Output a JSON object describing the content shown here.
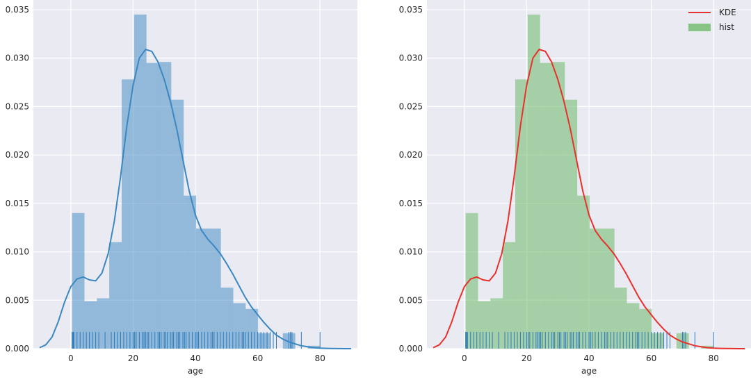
{
  "chart_data": [
    {
      "type": "histogram",
      "xlabel": "age",
      "ylabel": "",
      "xlim": [
        -12,
        92
      ],
      "ylim": [
        0,
        0.036
      ],
      "xticks": [
        0,
        20,
        40,
        60,
        80
      ],
      "yticks": [
        0.0,
        0.005,
        0.01,
        0.015,
        0.02,
        0.025,
        0.03,
        0.035
      ],
      "grid": true,
      "legend": null,
      "colors": {
        "hist": "#3a87c2",
        "kde": "#3a87c2",
        "rug": "#2b7bbd",
        "background": "#eaeaf2"
      },
      "hist": {
        "bin_edges": [
          0.42,
          4.4,
          8.38,
          12.36,
          16.34,
          20.32,
          24.3,
          28.28,
          32.26,
          36.24,
          40.22,
          44.2,
          48.18,
          52.16,
          56.14,
          60.12,
          64.1,
          68.08,
          72.06,
          76.04,
          80.02
        ],
        "density": [
          0.014,
          0.0049,
          0.0052,
          0.011,
          0.0278,
          0.0345,
          0.0295,
          0.0296,
          0.0257,
          0.0158,
          0.0124,
          0.0124,
          0.0063,
          0.0047,
          0.0041,
          0.0016,
          0.0,
          0.0016,
          0.0,
          0.0003
        ]
      },
      "kde": {
        "x": [
          -10,
          -8,
          -6,
          -4,
          -2,
          0,
          2,
          4,
          6,
          8,
          10,
          12,
          14,
          16,
          18,
          20,
          22,
          24,
          26,
          28,
          30,
          32,
          34,
          36,
          38,
          40,
          42,
          44,
          46,
          48,
          50,
          52,
          54,
          56,
          58,
          60,
          62,
          64,
          66,
          68,
          70,
          72,
          74,
          76,
          78,
          80,
          82,
          84,
          86,
          88,
          90
        ],
        "y": [
          0.0001,
          0.0004,
          0.0012,
          0.0028,
          0.0048,
          0.0064,
          0.0072,
          0.0074,
          0.0071,
          0.007,
          0.0078,
          0.0098,
          0.0132,
          0.0178,
          0.023,
          0.0272,
          0.03,
          0.0309,
          0.0307,
          0.0296,
          0.0278,
          0.0255,
          0.0227,
          0.0195,
          0.0163,
          0.0138,
          0.0122,
          0.0113,
          0.0106,
          0.0098,
          0.0088,
          0.0077,
          0.0065,
          0.0053,
          0.0043,
          0.0035,
          0.0027,
          0.002,
          0.0014,
          0.001,
          0.0007,
          0.0005,
          0.0003,
          0.0002,
          0.0001,
          5e-05,
          3e-05,
          2e-05,
          1e-05,
          0.0,
          0.0
        ]
      },
      "rug": [
        0.42,
        0.67,
        0.83,
        0.92,
        1,
        2,
        3,
        4,
        5,
        6,
        7,
        8,
        9,
        11,
        13,
        14,
        15,
        16,
        17,
        18,
        19,
        20,
        20.5,
        21,
        22,
        23,
        23.5,
        24,
        24.5,
        25,
        26,
        27,
        28,
        28.5,
        29,
        30,
        30.5,
        31,
        32,
        32.5,
        33,
        34,
        34.5,
        35,
        36,
        36.5,
        37,
        38,
        39,
        40,
        40.5,
        41,
        42,
        43,
        44,
        45,
        45.5,
        46,
        47,
        48,
        49,
        50,
        51,
        52,
        53,
        54,
        55,
        55.5,
        56,
        57,
        58,
        59,
        60,
        61,
        62,
        63,
        64,
        65,
        66,
        70,
        70.5,
        71,
        74,
        80
      ]
    },
    {
      "type": "histogram",
      "xlabel": "age",
      "ylabel": "",
      "xlim": [
        -12,
        92
      ],
      "ylim": [
        0,
        0.036
      ],
      "xticks": [
        0,
        20,
        40,
        60,
        80
      ],
      "yticks": [
        0.0,
        0.005,
        0.01,
        0.015,
        0.02,
        0.025,
        0.03,
        0.035
      ],
      "grid": true,
      "legend": {
        "placement": "top-right",
        "entries": [
          {
            "label": "KDE",
            "kind": "line",
            "color": "#e8302c"
          },
          {
            "label": "hist",
            "kind": "patch",
            "color": "#5fb35a"
          }
        ]
      },
      "colors": {
        "hist": "#5fb35a",
        "kde": "#e8302c",
        "rug": "#2b7bbd",
        "background": "#eaeaf2"
      },
      "hist": {
        "bin_edges": [
          0.42,
          4.4,
          8.38,
          12.36,
          16.34,
          20.32,
          24.3,
          28.28,
          32.26,
          36.24,
          40.22,
          44.2,
          48.18,
          52.16,
          56.14,
          60.12,
          64.1,
          68.08,
          72.06,
          76.04,
          80.02
        ],
        "density": [
          0.014,
          0.0049,
          0.0052,
          0.011,
          0.0278,
          0.0345,
          0.0295,
          0.0296,
          0.0257,
          0.0158,
          0.0124,
          0.0124,
          0.0063,
          0.0047,
          0.0041,
          0.0016,
          0.0,
          0.0016,
          0.0,
          0.0003
        ]
      },
      "kde": {
        "x": [
          -10,
          -8,
          -6,
          -4,
          -2,
          0,
          2,
          4,
          6,
          8,
          10,
          12,
          14,
          16,
          18,
          20,
          22,
          24,
          26,
          28,
          30,
          32,
          34,
          36,
          38,
          40,
          42,
          44,
          46,
          48,
          50,
          52,
          54,
          56,
          58,
          60,
          62,
          64,
          66,
          68,
          70,
          72,
          74,
          76,
          78,
          80,
          82,
          84,
          86,
          88,
          90
        ],
        "y": [
          0.0001,
          0.0004,
          0.0012,
          0.0028,
          0.0048,
          0.0064,
          0.0072,
          0.0074,
          0.0071,
          0.007,
          0.0078,
          0.0098,
          0.0132,
          0.0178,
          0.023,
          0.0272,
          0.03,
          0.0309,
          0.0307,
          0.0296,
          0.0278,
          0.0255,
          0.0227,
          0.0195,
          0.0163,
          0.0138,
          0.0122,
          0.0113,
          0.0106,
          0.0098,
          0.0088,
          0.0077,
          0.0065,
          0.0053,
          0.0043,
          0.0035,
          0.0027,
          0.002,
          0.0014,
          0.001,
          0.0007,
          0.0005,
          0.0003,
          0.0002,
          0.0001,
          5e-05,
          3e-05,
          2e-05,
          1e-05,
          0.0,
          0.0
        ]
      },
      "rug": [
        0.42,
        0.67,
        0.83,
        0.92,
        1,
        2,
        3,
        4,
        5,
        6,
        7,
        8,
        9,
        11,
        13,
        14,
        15,
        16,
        17,
        18,
        19,
        20,
        20.5,
        21,
        22,
        23,
        23.5,
        24,
        24.5,
        25,
        26,
        27,
        28,
        28.5,
        29,
        30,
        30.5,
        31,
        32,
        32.5,
        33,
        34,
        34.5,
        35,
        36,
        36.5,
        37,
        38,
        39,
        40,
        40.5,
        41,
        42,
        43,
        44,
        45,
        45.5,
        46,
        47,
        48,
        49,
        50,
        51,
        52,
        53,
        54,
        55,
        55.5,
        56,
        57,
        58,
        59,
        60,
        61,
        62,
        63,
        64,
        65,
        66,
        70,
        70.5,
        71,
        74,
        80
      ]
    }
  ]
}
